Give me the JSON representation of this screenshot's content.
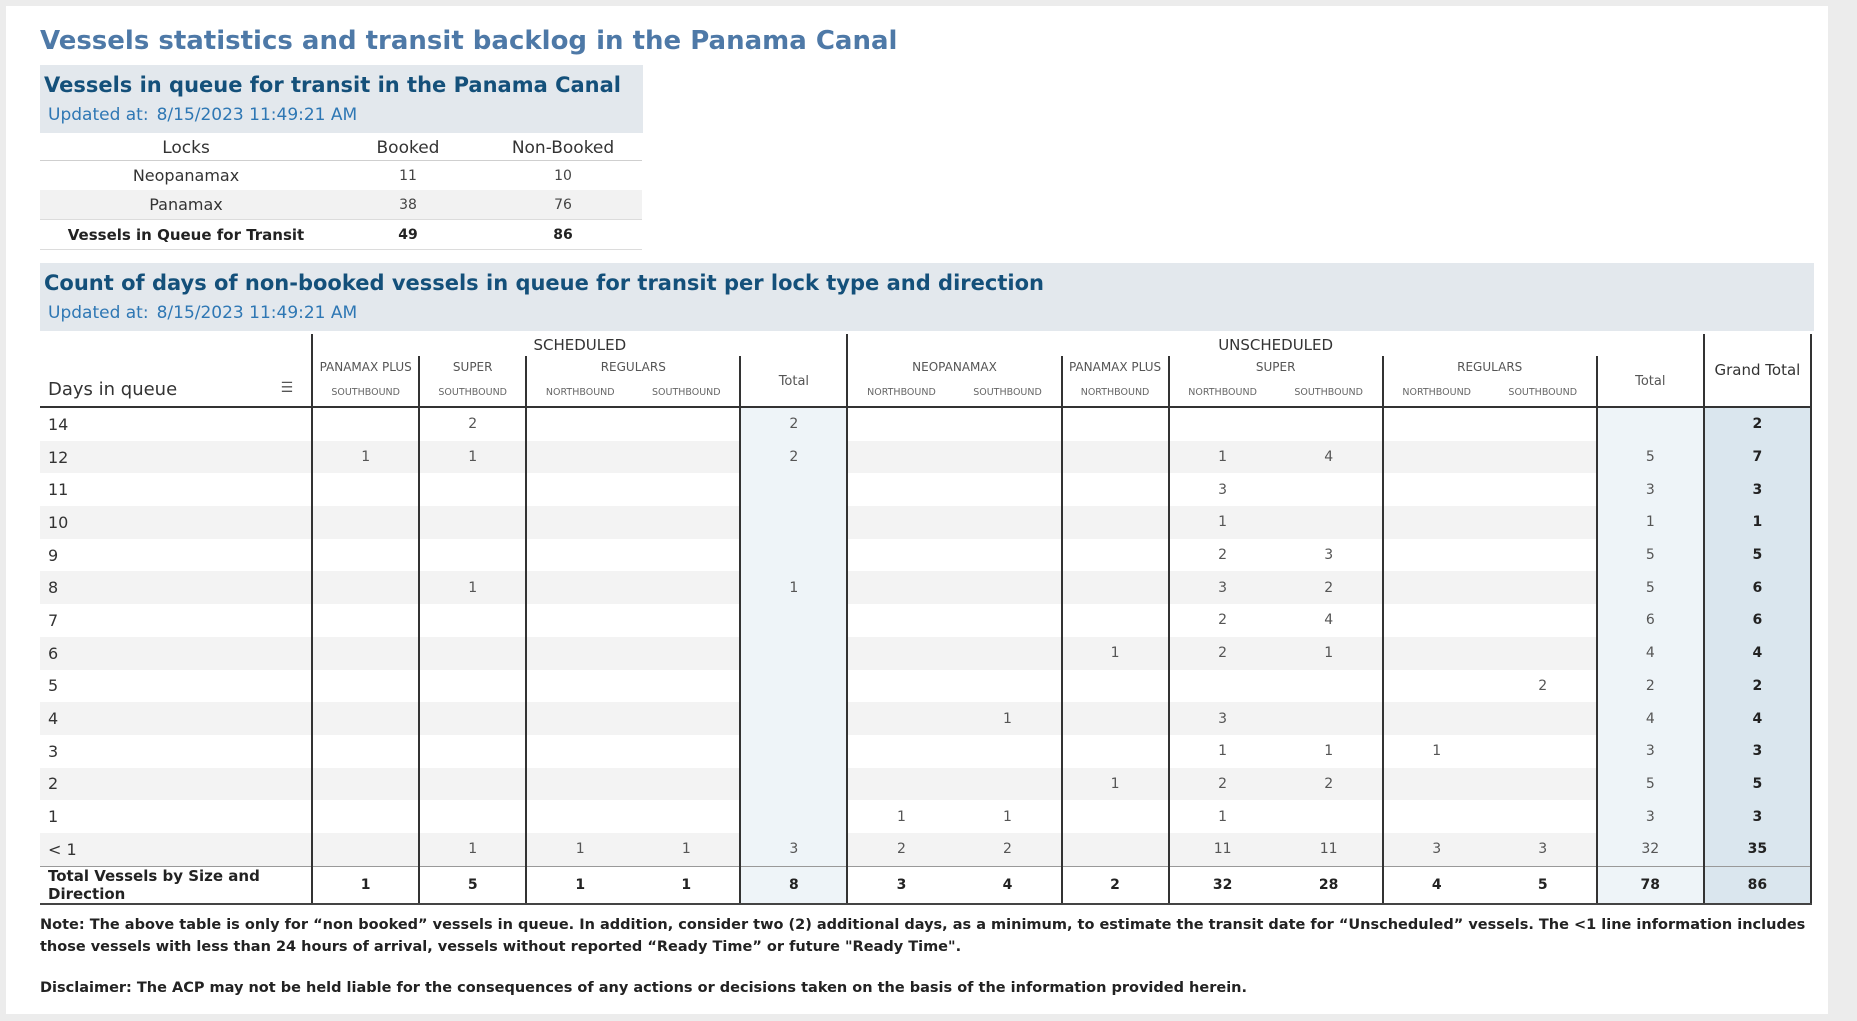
{
  "main_title": "Vessels statistics and transit backlog in the Panama Canal",
  "queue_panel": {
    "title": "Vessels in queue for transit in the Panama Canal",
    "updated_label": "Updated at:",
    "updated_value": "8/15/2023 11:49:21 AM",
    "columns": [
      "Locks",
      "Booked",
      "Non-Booked"
    ],
    "rows": [
      {
        "lock": "Neopanamax",
        "booked": "11",
        "non_booked": "10"
      },
      {
        "lock": "Panamax",
        "booked": "38",
        "non_booked": "76"
      }
    ],
    "total": {
      "lock": "Vessels in Queue for Transit",
      "booked": "49",
      "non_booked": "86"
    }
  },
  "days_panel": {
    "title": "Count of days of non-booked vessels in queue for transit per lock type and direction",
    "updated_label": "Updated at:",
    "updated_value": "8/15/2023 11:49:21 AM",
    "days_header": "Days in queue",
    "scheduled_label": "SCHEDULED",
    "unscheduled_label": "UNSCHEDULED",
    "sched_groups": [
      "PANAMAX PLUS",
      "SUPER",
      "REGULARS"
    ],
    "unsched_groups": [
      "NEOPANAMAX",
      "PANAMAX PLUS",
      "SUPER",
      "REGULARS"
    ],
    "total_label": "Total",
    "grand_total_label": "Grand Total",
    "directions": [
      "SOUTHBOUND",
      "SOUTHBOUND",
      "NORTHBOUND",
      "SOUTHBOUND",
      "NORTHBOUND",
      "SOUTHBOUND",
      "NORTHBOUND",
      "NORTHBOUND",
      "SOUTHBOUND",
      "NORTHBOUND",
      "SOUTHBOUND"
    ],
    "rows": [
      {
        "day": "14",
        "cells": [
          "",
          "2",
          "",
          "",
          "2",
          "",
          "",
          "",
          "",
          "",
          "",
          "",
          "",
          "2"
        ]
      },
      {
        "day": "12",
        "cells": [
          "1",
          "1",
          "",
          "",
          "2",
          "",
          "",
          "",
          "1",
          "4",
          "",
          "",
          "5",
          "7"
        ]
      },
      {
        "day": "11",
        "cells": [
          "",
          "",
          "",
          "",
          "",
          "",
          "",
          "",
          "3",
          "",
          "",
          "",
          "3",
          "3"
        ]
      },
      {
        "day": "10",
        "cells": [
          "",
          "",
          "",
          "",
          "",
          "",
          "",
          "",
          "1",
          "",
          "",
          "",
          "1",
          "1"
        ]
      },
      {
        "day": "9",
        "cells": [
          "",
          "",
          "",
          "",
          "",
          "",
          "",
          "",
          "2",
          "3",
          "",
          "",
          "5",
          "5"
        ]
      },
      {
        "day": "8",
        "cells": [
          "",
          "1",
          "",
          "",
          "1",
          "",
          "",
          "",
          "3",
          "2",
          "",
          "",
          "5",
          "6"
        ]
      },
      {
        "day": "7",
        "cells": [
          "",
          "",
          "",
          "",
          "",
          "",
          "",
          "",
          "2",
          "4",
          "",
          "",
          "6",
          "6"
        ]
      },
      {
        "day": "6",
        "cells": [
          "",
          "",
          "",
          "",
          "",
          "",
          "",
          "1",
          "2",
          "1",
          "",
          "",
          "4",
          "4"
        ]
      },
      {
        "day": "5",
        "cells": [
          "",
          "",
          "",
          "",
          "",
          "",
          "",
          "",
          "",
          "",
          "",
          "2",
          "2",
          "2"
        ]
      },
      {
        "day": "4",
        "cells": [
          "",
          "",
          "",
          "",
          "",
          "",
          "1",
          "",
          "3",
          "",
          "",
          "",
          "4",
          "4"
        ]
      },
      {
        "day": "3",
        "cells": [
          "",
          "",
          "",
          "",
          "",
          "",
          "",
          "",
          "1",
          "1",
          "1",
          "",
          "3",
          "3"
        ]
      },
      {
        "day": "2",
        "cells": [
          "",
          "",
          "",
          "",
          "",
          "",
          "",
          "1",
          "2",
          "2",
          "",
          "",
          "5",
          "5"
        ]
      },
      {
        "day": "1",
        "cells": [
          "",
          "",
          "",
          "",
          "",
          "1",
          "1",
          "",
          "1",
          "",
          "",
          "",
          "3",
          "3"
        ]
      },
      {
        "day": "< 1",
        "cells": [
          "",
          "1",
          "1",
          "1",
          "3",
          "2",
          "2",
          "",
          "11",
          "11",
          "3",
          "3",
          "32",
          "35"
        ]
      }
    ],
    "total_row": {
      "label": "Total Vessels by Size and Direction",
      "cells": [
        "1",
        "5",
        "1",
        "1",
        "8",
        "3",
        "4",
        "2",
        "32",
        "28",
        "4",
        "5",
        "78",
        "86"
      ]
    }
  },
  "note": "Note:  The above table is only for “non booked” vessels in queue. In addition, consider two (2) additional days, as a minimum, to estimate the transit date for “Unscheduled” vessels.  The <1 line information includes those vessels with less than 24 hours of arrival, vessels without reported “Ready Time” or future \"Ready Time\".",
  "disclaimer": "Disclaimer: The ACP may not be held liable for the consequences of any actions or decisions taken on the basis of the information provided herein."
}
